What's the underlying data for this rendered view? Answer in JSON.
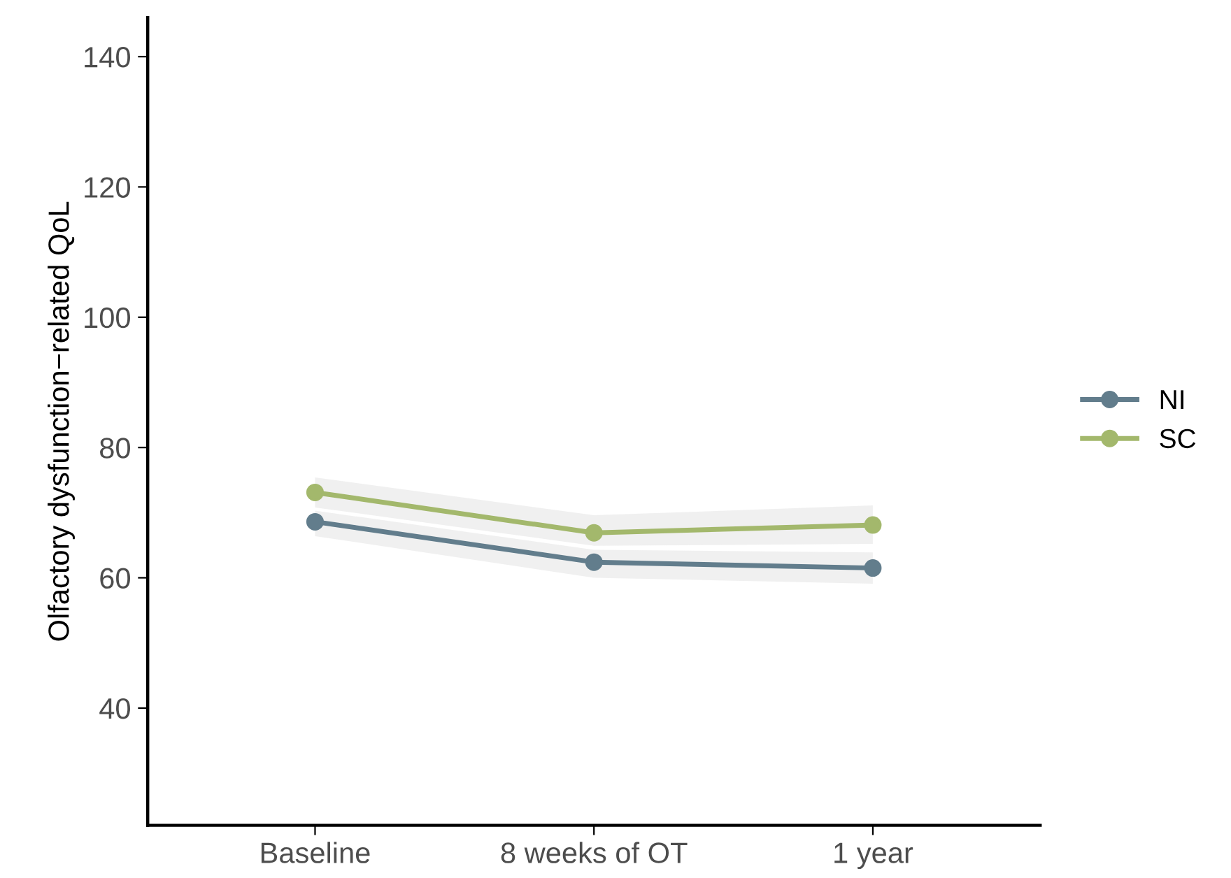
{
  "chart_data": {
    "type": "line",
    "ylabel": "Olfactory dysfunction−related QoL",
    "categories": [
      "Baseline",
      "8 weeks of OT",
      "1 year"
    ],
    "series": [
      {
        "name": "NI",
        "color": "#627d8c",
        "values": [
          68.6,
          62.4,
          61.5
        ],
        "lower": [
          66.4,
          60.0,
          59.1
        ],
        "upper": [
          70.3,
          64.3,
          63.9
        ]
      },
      {
        "name": "SC",
        "color": "#a3b86c",
        "values": [
          73.1,
          66.9,
          68.1
        ],
        "lower": [
          70.8,
          64.9,
          65.2
        ],
        "upper": [
          75.4,
          69.6,
          71.1
        ]
      }
    ],
    "ylim": [
      22,
      146
    ],
    "yticks": [
      40,
      60,
      80,
      100,
      120,
      140
    ],
    "grid": false,
    "legend": "right",
    "marker": "circle",
    "line_style": "solid"
  }
}
